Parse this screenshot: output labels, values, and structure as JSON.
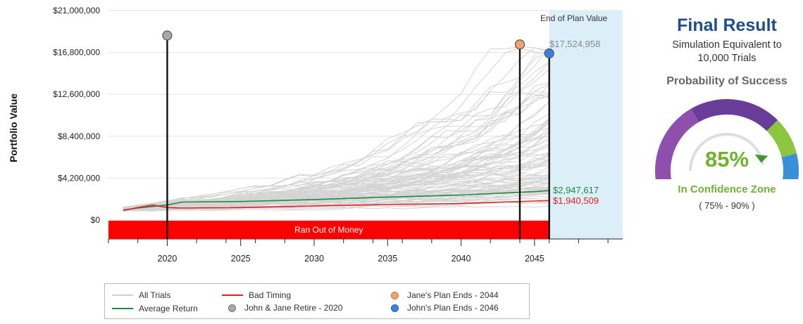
{
  "chart_data": {
    "type": "line",
    "ylabel": "Portfolio Value",
    "ylim": [
      0,
      21000000
    ],
    "xlim": [
      2016,
      2051
    ],
    "y_ticks": [
      "$0",
      "$4,200,000",
      "$8,400,000",
      "$12,600,000",
      "$16,800,000",
      "$21,000,000"
    ],
    "y_tick_values": [
      0,
      4200000,
      8400000,
      12600000,
      16800000,
      21000000
    ],
    "x_ticks": [
      "2020",
      "2025",
      "2030",
      "2035",
      "2040",
      "2045"
    ],
    "x_tick_values": [
      2020,
      2025,
      2030,
      2035,
      2040,
      2045
    ],
    "grid": true,
    "legend_position": "bottom",
    "series": [
      {
        "name": "Average Return",
        "color": "#1e8a3c",
        "x": [
          2017,
          2018,
          2019,
          2020,
          2021,
          2025,
          2030,
          2035,
          2040,
          2045,
          2046
        ],
        "y": [
          1000000,
          1200000,
          1350000,
          1500000,
          1800000,
          1850000,
          2050000,
          2300000,
          2500000,
          2850000,
          2947617
        ]
      },
      {
        "name": "Bad Timing",
        "color": "#e02020",
        "x": [
          2017,
          2018,
          2019,
          2020,
          2021,
          2025,
          2030,
          2035,
          2040,
          2045,
          2046
        ],
        "y": [
          950000,
          1250000,
          1500000,
          1250000,
          1200000,
          1250000,
          1400000,
          1550000,
          1650000,
          1900000,
          1940509
        ]
      }
    ],
    "trials_series_name": "All Trials",
    "trials_color": "#d4d4d4",
    "markers": [
      {
        "name": "John & Jane  Retire - 2020",
        "year": 2020,
        "color": "#a8a8a8",
        "value": 18500000
      },
      {
        "name": "Jane's Plan Ends - 2044",
        "year": 2044,
        "color": "#f4a16b",
        "value": 17600000
      },
      {
        "name": "John's Plan Ends - 2046",
        "year": 2046,
        "color": "#3b7ee8",
        "value": 16700000
      }
    ],
    "end_of_plan": {
      "title": "End of Plan Value",
      "start_year": 2046,
      "top_value_label": "$17,524,958",
      "average_label": "$2,947,617",
      "bad_timing_label": "$1,940,509"
    },
    "ran_out_band": {
      "label": "Ran Out of Money",
      "color": "#ff0000",
      "end_year": 2046
    }
  },
  "legend": {
    "all_trials": "All Trials",
    "bad_timing": "Bad Timing",
    "jane_plan": "Jane's Plan Ends - 2044",
    "average_return": "Average Return",
    "retire": "John & Jane  Retire - 2020",
    "john_plan": "John's Plan Ends - 2046"
  },
  "result_panel": {
    "title": "Final Result",
    "simulation_line1": "Simulation Equivalent to",
    "simulation_line2": "10,000 Trials",
    "probability_title": "Probability of Success",
    "percent": "85%",
    "percent_value": 85,
    "zone_label": "In Confidence Zone",
    "zone_range": "( 75% - 90% )",
    "gauge_colors": [
      "#8e4fad",
      "#6a3d9a",
      "#8cc63f",
      "#3a8fd9"
    ]
  }
}
